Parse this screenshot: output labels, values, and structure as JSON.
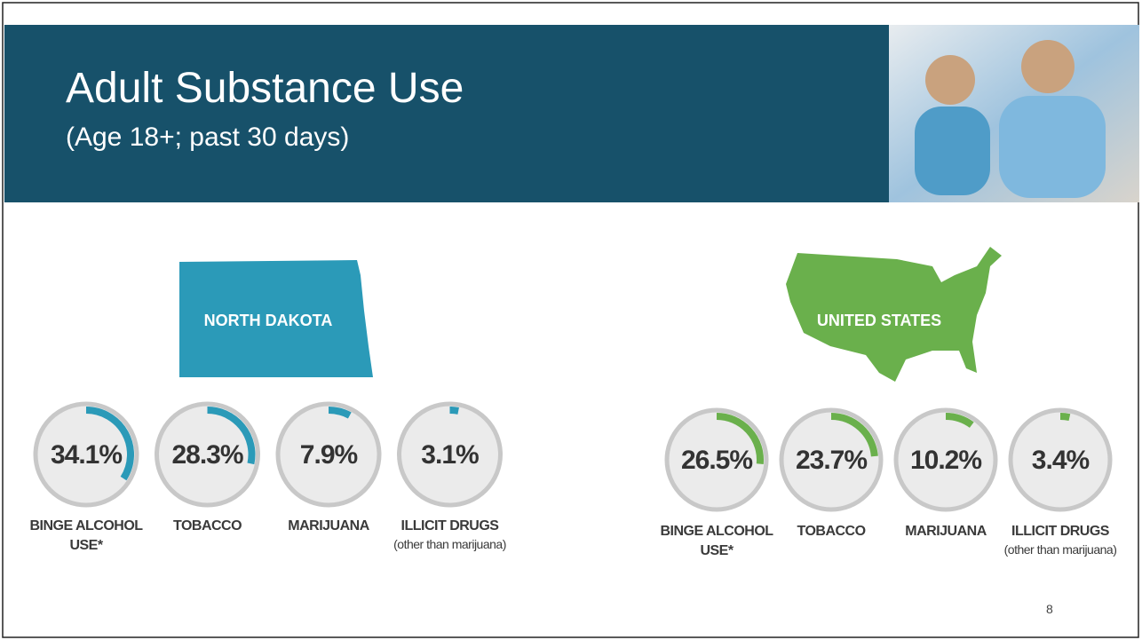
{
  "slide": {
    "title": "Adult Substance Use",
    "subtitle": "(Age 18+; past 30 days)",
    "page_number": "8"
  },
  "chart_data": [
    {
      "type": "gauge",
      "region": "NORTH DAKOTA",
      "color": "#2b9ab8",
      "categories": [
        "BINGE ALCOHOL USE*",
        "TOBACCO",
        "MARIJUANA",
        "ILLICIT DRUGS"
      ],
      "notes": [
        null,
        null,
        null,
        "(other than marijuana)"
      ],
      "values": [
        34.1,
        28.3,
        7.9,
        3.1
      ],
      "value_labels": [
        "34.1%",
        "28.3%",
        "7.9%",
        "3.1%"
      ],
      "ylim": [
        0,
        100
      ]
    },
    {
      "type": "gauge",
      "region": "UNITED STATES",
      "color": "#6ab04c",
      "categories": [
        "BINGE ALCOHOL USE*",
        "TOBACCO",
        "MARIJUANA",
        "ILLICIT DRUGS"
      ],
      "notes": [
        null,
        null,
        null,
        "(other than marijuana)"
      ],
      "values": [
        26.5,
        23.7,
        10.2,
        3.4
      ],
      "value_labels": [
        "26.5%",
        "23.7%",
        "10.2%",
        "3.4%"
      ],
      "ylim": [
        0,
        100
      ]
    }
  ]
}
